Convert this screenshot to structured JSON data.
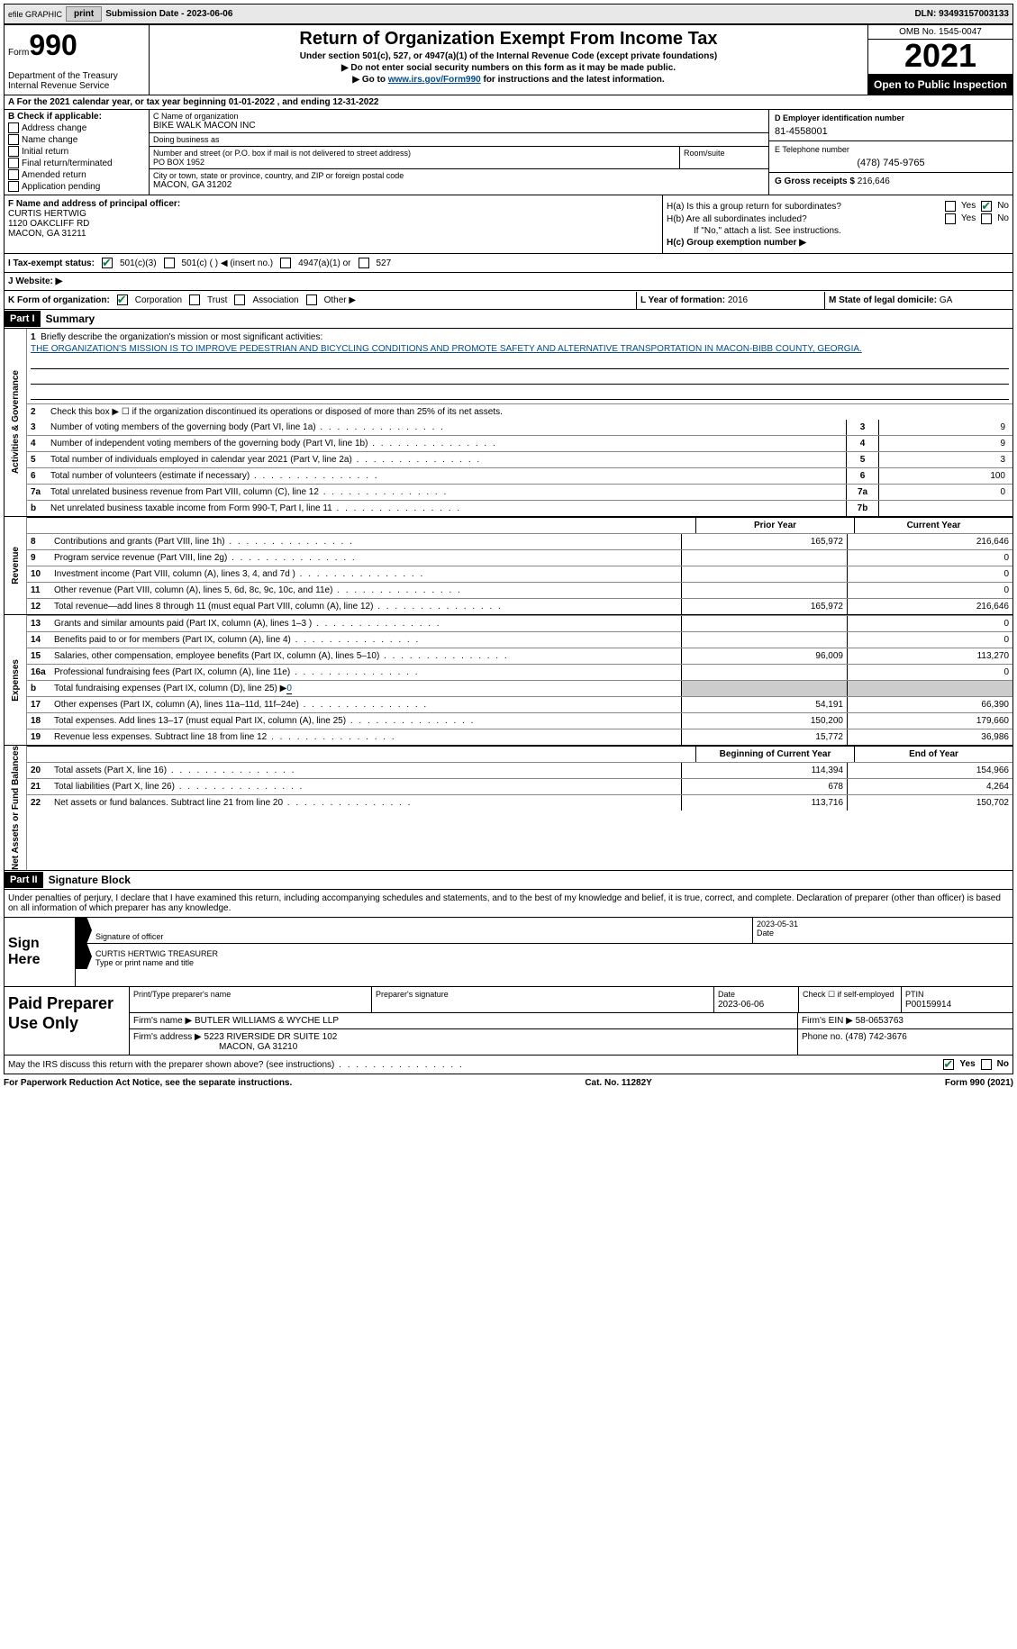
{
  "topbar": {
    "efile": "efile GRAPHIC",
    "print": "print",
    "submission_label": "Submission Date - ",
    "submission_date": "2023-06-06",
    "dln_label": "DLN: ",
    "dln": "93493157003133"
  },
  "header": {
    "form_label": "Form",
    "form_number": "990",
    "dept": "Department of the Treasury\nInternal Revenue Service",
    "title": "Return of Organization Exempt From Income Tax",
    "subtitle": "Under section 501(c), 527, or 4947(a)(1) of the Internal Revenue Code (except private foundations)",
    "note1": "▶ Do not enter social security numbers on this form as it may be made public.",
    "note2_pre": "▶ Go to ",
    "note2_link": "www.irs.gov/Form990",
    "note2_post": " for instructions and the latest information.",
    "omb": "OMB No. 1545-0047",
    "year": "2021",
    "inspection": "Open to Public Inspection"
  },
  "row_a": {
    "text_pre": "A For the 2021 calendar year, or tax year beginning ",
    "begin": "01-01-2022",
    "mid": " , and ending ",
    "end": "12-31-2022"
  },
  "col_b": {
    "label": "B Check if applicable:",
    "items": [
      "Address change",
      "Name change",
      "Initial return",
      "Final return/terminated",
      "Amended return",
      "Application pending"
    ]
  },
  "col_c": {
    "name_label": "C Name of organization",
    "name": "BIKE WALK MACON INC",
    "dba_label": "Doing business as",
    "addr_label": "Number and street (or P.O. box if mail is not delivered to street address)",
    "addr": "PO BOX 1952",
    "room_label": "Room/suite",
    "city_label": "City or town, state or province, country, and ZIP or foreign postal code",
    "city": "MACON, GA  31202"
  },
  "col_d": {
    "ein_label": "D Employer identification number",
    "ein": "81-4558001",
    "phone_label": "E Telephone number",
    "phone": "(478) 745-9765",
    "gross_label": "G Gross receipts $ ",
    "gross": "216,646"
  },
  "block_f": {
    "label": "F  Name and address of principal officer:",
    "name": "CURTIS HERTWIG",
    "addr1": "1120 OAKCLIFF RD",
    "addr2": "MACON, GA  31211"
  },
  "block_h": {
    "ha": "H(a)  Is this a group return for subordinates?",
    "hb": "H(b)  Are all subordinates included?",
    "hb_note": "If \"No,\" attach a list. See instructions.",
    "hc": "H(c)  Group exemption number ▶"
  },
  "row_i": {
    "label": "I  Tax-exempt status:",
    "opts": [
      "501(c)(3)",
      "501(c) (  ) ◀ (insert no.)",
      "4947(a)(1) or",
      "527"
    ]
  },
  "row_j": {
    "label": "J  Website: ▶"
  },
  "row_k": {
    "label": "K Form of organization:",
    "opts": [
      "Corporation",
      "Trust",
      "Association",
      "Other ▶"
    ],
    "l_label": "L Year of formation: ",
    "l_val": "2016",
    "m_label": "M State of legal domicile: ",
    "m_val": "GA"
  },
  "part1": {
    "header": "Part I",
    "title": "Summary",
    "line1_label": "Briefly describe the organization's mission or most significant activities:",
    "mission": "THE ORGANIZATION'S MISSION IS TO IMPROVE PEDESTRIAN AND BICYCLING CONDITIONS AND PROMOTE SAFETY AND ALTERNATIVE TRANSPORTATION IN MACON-BIBB COUNTY, GEORGIA.",
    "line2": "Check this box ▶ ☐  if the organization discontinued its operations or disposed of more than 25% of its net assets.",
    "lines_ag": [
      {
        "n": "3",
        "d": "Number of voting members of the governing body (Part VI, line 1a)",
        "box": "3",
        "v": "9"
      },
      {
        "n": "4",
        "d": "Number of independent voting members of the governing body (Part VI, line 1b)",
        "box": "4",
        "v": "9"
      },
      {
        "n": "5",
        "d": "Total number of individuals employed in calendar year 2021 (Part V, line 2a)",
        "box": "5",
        "v": "3"
      },
      {
        "n": "6",
        "d": "Total number of volunteers (estimate if necessary)",
        "box": "6",
        "v": "100"
      },
      {
        "n": "7a",
        "d": "Total unrelated business revenue from Part VIII, column (C), line 12",
        "box": "7a",
        "v": "0"
      },
      {
        "n": "b",
        "d": "Net unrelated business taxable income from Form 990-T, Part I, line 11",
        "box": "7b",
        "v": ""
      }
    ],
    "col_headers": {
      "prior": "Prior Year",
      "current": "Current Year"
    },
    "revenue": [
      {
        "n": "8",
        "d": "Contributions and grants (Part VIII, line 1h)",
        "p": "165,972",
        "c": "216,646"
      },
      {
        "n": "9",
        "d": "Program service revenue (Part VIII, line 2g)",
        "p": "",
        "c": "0"
      },
      {
        "n": "10",
        "d": "Investment income (Part VIII, column (A), lines 3, 4, and 7d )",
        "p": "",
        "c": "0"
      },
      {
        "n": "11",
        "d": "Other revenue (Part VIII, column (A), lines 5, 6d, 8c, 9c, 10c, and 11e)",
        "p": "",
        "c": "0"
      },
      {
        "n": "12",
        "d": "Total revenue—add lines 8 through 11 (must equal Part VIII, column (A), line 12)",
        "p": "165,972",
        "c": "216,646"
      }
    ],
    "expenses": [
      {
        "n": "13",
        "d": "Grants and similar amounts paid (Part IX, column (A), lines 1–3 )",
        "p": "",
        "c": "0"
      },
      {
        "n": "14",
        "d": "Benefits paid to or for members (Part IX, column (A), line 4)",
        "p": "",
        "c": "0"
      },
      {
        "n": "15",
        "d": "Salaries, other compensation, employee benefits (Part IX, column (A), lines 5–10)",
        "p": "96,009",
        "c": "113,270"
      },
      {
        "n": "16a",
        "d": "Professional fundraising fees (Part IX, column (A), line 11e)",
        "p": "",
        "c": "0"
      },
      {
        "n": "b",
        "d": "Total fundraising expenses (Part IX, column (D), line 25) ▶",
        "p": "grey",
        "c": "grey",
        "val": "0"
      },
      {
        "n": "17",
        "d": "Other expenses (Part IX, column (A), lines 11a–11d, 11f–24e)",
        "p": "54,191",
        "c": "66,390"
      },
      {
        "n": "18",
        "d": "Total expenses. Add lines 13–17 (must equal Part IX, column (A), line 25)",
        "p": "150,200",
        "c": "179,660"
      },
      {
        "n": "19",
        "d": "Revenue less expenses. Subtract line 18 from line 12",
        "p": "15,772",
        "c": "36,986"
      }
    ],
    "nab_headers": {
      "begin": "Beginning of Current Year",
      "end": "End of Year"
    },
    "netassets": [
      {
        "n": "20",
        "d": "Total assets (Part X, line 16)",
        "p": "114,394",
        "c": "154,966"
      },
      {
        "n": "21",
        "d": "Total liabilities (Part X, line 26)",
        "p": "678",
        "c": "4,264"
      },
      {
        "n": "22",
        "d": "Net assets or fund balances. Subtract line 21 from line 20",
        "p": "113,716",
        "c": "150,702"
      }
    ]
  },
  "part2": {
    "header": "Part II",
    "title": "Signature Block",
    "declare": "Under penalties of perjury, I declare that I have examined this return, including accompanying schedules and statements, and to the best of my knowledge and belief, it is true, correct, and complete. Declaration of preparer (other than officer) is based on all information of which preparer has any knowledge.",
    "sign_here": "Sign Here",
    "sig_officer": "Signature of officer",
    "sig_date": "2023-05-31",
    "date_label": "Date",
    "name_title": "CURTIS HERTWIG  TREASURER",
    "name_label": "Type or print name and title"
  },
  "preparer": {
    "label": "Paid Preparer Use Only",
    "r1": {
      "name_label": "Print/Type preparer's name",
      "sig_label": "Preparer's signature",
      "date_label": "Date",
      "date": "2023-06-06",
      "check_label": "Check ☐ if self-employed",
      "ptin_label": "PTIN",
      "ptin": "P00159914"
    },
    "r2": {
      "firm_label": "Firm's name    ▶ ",
      "firm": "BUTLER WILLIAMS & WYCHE LLP",
      "ein_label": "Firm's EIN ▶ ",
      "ein": "58-0653763"
    },
    "r3": {
      "addr_label": "Firm's address ▶ ",
      "addr1": "5223 RIVERSIDE DR SUITE 102",
      "addr2": "MACON, GA  31210",
      "phone_label": "Phone no. ",
      "phone": "(478) 742-3676"
    }
  },
  "footer": {
    "discuss": "May the IRS discuss this return with the preparer shown above? (see instructions)",
    "paperwork": "For Paperwork Reduction Act Notice, see the separate instructions.",
    "cat": "Cat. No. 11282Y",
    "form": "Form 990 (2021)"
  },
  "tabs": {
    "ag": "Activities & Governance",
    "rev": "Revenue",
    "exp": "Expenses",
    "nab": "Net Assets or Fund Balances"
  }
}
